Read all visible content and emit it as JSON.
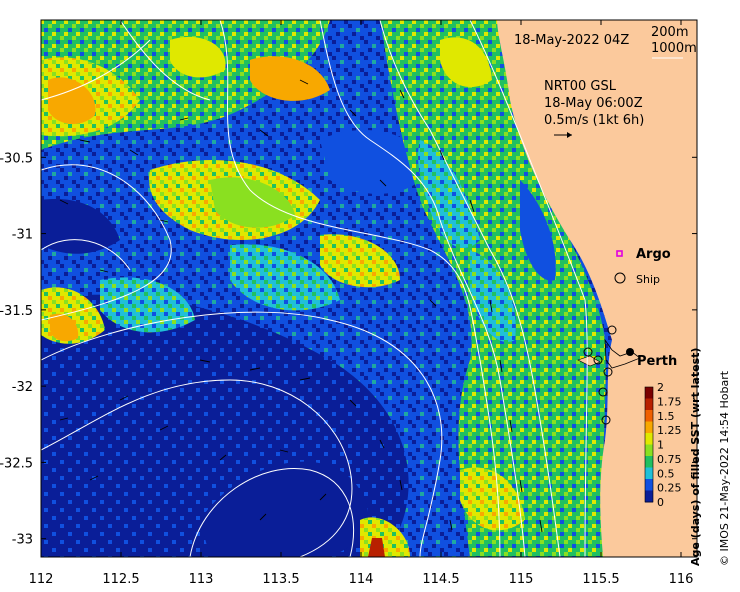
{
  "title_date": "18-May-2022 04Z",
  "depth_labels": [
    "200m",
    "1000m"
  ],
  "current_info": {
    "model": "NRT00 GSL",
    "time": "18-May 06:00Z",
    "scale": "0.5m/s (1kt 6h)"
  },
  "legend": {
    "argo": "Argo",
    "ship": "Ship"
  },
  "place_labels": {
    "perth": "Perth"
  },
  "colorbar": {
    "label": "Age (days) of filled SST (wrt latest)",
    "ticks": [
      "2",
      "1.75",
      "1.5",
      "1.25",
      "1",
      "0.75",
      "0.5",
      "0.25",
      "0"
    ],
    "colors": [
      "#7a0000",
      "#b82000",
      "#f06000",
      "#f8a800",
      "#e0e800",
      "#8ae020",
      "#20c060",
      "#20c0d8",
      "#1050e0",
      "#0a1e98"
    ]
  },
  "credit": "© IMOS 21-May-2022 14:54 Hobart",
  "axes": {
    "x_ticks": [
      "112",
      "112.5",
      "113",
      "113.5",
      "114",
      "114.5",
      "115",
      "115.5",
      "116"
    ],
    "y_ticks": [
      "-30.5",
      "-31",
      "-31.5",
      "-32",
      "-32.5",
      "-33"
    ],
    "x_range": [
      112,
      116.1
    ],
    "y_range": [
      -33.12,
      -29.6
    ]
  },
  "map_colors": {
    "land": "#fbc99c",
    "deep": "#0a1e98",
    "blue": "#1050e0",
    "cyan": "#20c0d8",
    "teal": "#20a8a0",
    "green": "#20c060",
    "lime": "#8ae020",
    "yellow": "#e0e800",
    "orange": "#f8a800",
    "red": "#b82000"
  }
}
